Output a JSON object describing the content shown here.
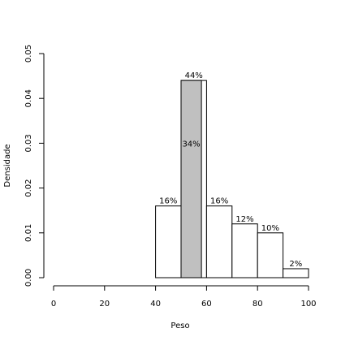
{
  "chart_data": {
    "type": "bar",
    "title": "",
    "xlabel": "Peso",
    "ylabel": "Densidade",
    "xlim": [
      0,
      100
    ],
    "ylim": [
      0,
      0.05
    ],
    "x_ticks": [
      "0",
      "20",
      "40",
      "60",
      "80",
      "100"
    ],
    "y_ticks": [
      "0.00",
      "0.01",
      "0.02",
      "0.03",
      "0.04",
      "0.05"
    ],
    "bins": [
      {
        "x_start": 40,
        "x_end": 50,
        "density": 0.016,
        "label": "16%"
      },
      {
        "x_start": 50,
        "x_end": 60,
        "density": 0.044,
        "label": "44%"
      },
      {
        "x_start": 60,
        "x_end": 70,
        "density": 0.016,
        "label": "16%"
      },
      {
        "x_start": 70,
        "x_end": 80,
        "density": 0.012,
        "label": "12%"
      },
      {
        "x_start": 80,
        "x_end": 90,
        "density": 0.01,
        "label": "10%"
      },
      {
        "x_start": 90,
        "x_end": 100,
        "density": 0.002,
        "label": "2%"
      }
    ],
    "highlight": {
      "x_start": 50,
      "x_end": 58,
      "density": 0.044,
      "label": "34%",
      "color": "#c0c0c0"
    },
    "bar_fill": "#ffffff",
    "bar_stroke": "#000000",
    "grid": false
  }
}
